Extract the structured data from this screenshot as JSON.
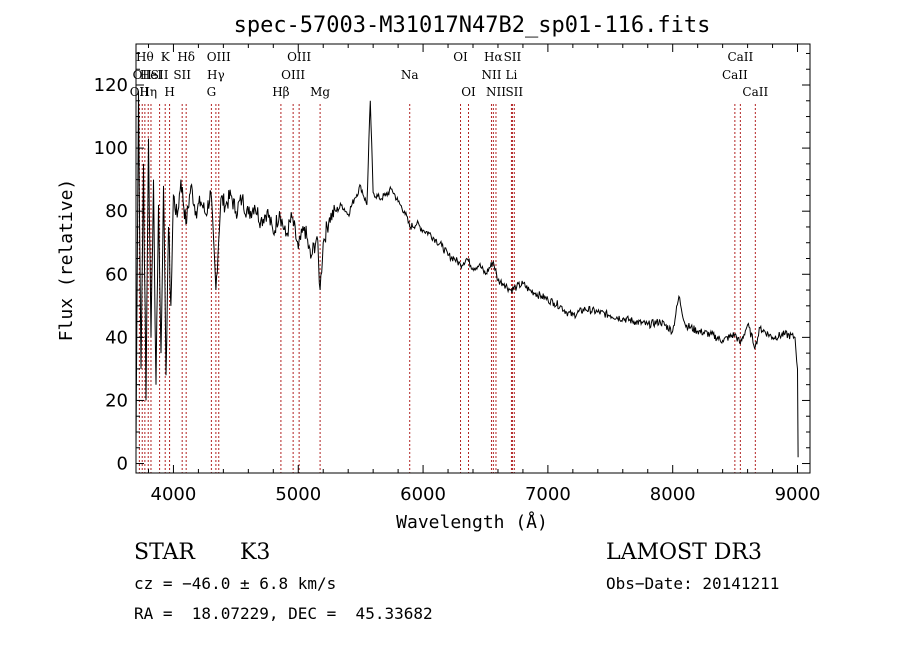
{
  "chart_data": {
    "type": "line",
    "title": "spec-57003-M31017N47B2_sp01-116.fits",
    "xlabel": "Wavelength (Å)",
    "ylabel": "Flux (relative)",
    "xlim": [
      3700,
      9100
    ],
    "ylim": [
      -3,
      133
    ],
    "xticks": [
      4000,
      5000,
      6000,
      7000,
      8000,
      9000
    ],
    "yticks": [
      0,
      20,
      40,
      60,
      80,
      100,
      120
    ],
    "series": [
      {
        "name": "flux",
        "x": [
          3700,
          3720,
          3740,
          3760,
          3780,
          3800,
          3820,
          3840,
          3860,
          3880,
          3900,
          3920,
          3940,
          3960,
          3980,
          4000,
          4030,
          4060,
          4100,
          4140,
          4180,
          4220,
          4260,
          4300,
          4340,
          4380,
          4420,
          4460,
          4500,
          4550,
          4600,
          4650,
          4700,
          4750,
          4800,
          4850,
          4900,
          4950,
          5000,
          5050,
          5100,
          5150,
          5175,
          5200,
          5250,
          5300,
          5350,
          5400,
          5450,
          5500,
          5550,
          5577,
          5600,
          5650,
          5700,
          5750,
          5800,
          5850,
          5893,
          5950,
          6000,
          6050,
          6100,
          6150,
          6200,
          6250,
          6300,
          6350,
          6400,
          6450,
          6500,
          6563,
          6600,
          6650,
          6700,
          6750,
          6800,
          6850,
          6900,
          6950,
          7000,
          7050,
          7100,
          7150,
          7200,
          7300,
          7400,
          7500,
          7600,
          7700,
          7800,
          7900,
          8000,
          8050,
          8100,
          8200,
          8300,
          8400,
          8498,
          8542,
          8600,
          8662,
          8700,
          8800,
          8900,
          8980,
          9000,
          9005
        ],
        "values": [
          5,
          118,
          30,
          95,
          20,
          103,
          40,
          90,
          25,
          82,
          35,
          88,
          28,
          75,
          50,
          85,
          78,
          90,
          76,
          88,
          80,
          83,
          79,
          86,
          55,
          84,
          82,
          85,
          80,
          84,
          79,
          82,
          77,
          80,
          73,
          80,
          72,
          78,
          68,
          75,
          65,
          72,
          55,
          70,
          78,
          80,
          82,
          79,
          84,
          88,
          82,
          115,
          86,
          84,
          85,
          87,
          83,
          80,
          75,
          76,
          74,
          73,
          71,
          69,
          66,
          65,
          63,
          65,
          62,
          63,
          60,
          64,
          58,
          57,
          55,
          56,
          57,
          55,
          54,
          53,
          52,
          51,
          50,
          48,
          47,
          49,
          48,
          47,
          46,
          45,
          44,
          45,
          42,
          53,
          44,
          42,
          41,
          39,
          41,
          38,
          44,
          37,
          43,
          40,
          41,
          40,
          30,
          2
        ]
      }
    ],
    "lines": [
      {
        "wl": 3727,
        "row": 2,
        "label": "OII"
      },
      {
        "wl": 3750,
        "row": 1,
        "label": "OII"
      },
      {
        "wl": 3771,
        "row": 0,
        "label": "Hθ"
      },
      {
        "wl": 3798,
        "row": 2,
        "label": "Hη"
      },
      {
        "wl": 3820,
        "row": 1,
        "label": "HeI"
      },
      {
        "wl": 3889,
        "row": 1,
        "label": "SII"
      },
      {
        "wl": 3934,
        "row": 0,
        "label": "K"
      },
      {
        "wl": 3969,
        "row": 2,
        "label": "H"
      },
      {
        "wl": 4070,
        "row": 1,
        "label": "SII"
      },
      {
        "wl": 4102,
        "row": 0,
        "label": "Hδ"
      },
      {
        "wl": 4304,
        "row": 2,
        "label": "G"
      },
      {
        "wl": 4340,
        "row": 1,
        "label": "Hγ"
      },
      {
        "wl": 4363,
        "row": 0,
        "label": "OIII"
      },
      {
        "wl": 4861,
        "row": 2,
        "label": "Hβ"
      },
      {
        "wl": 4959,
        "row": 1,
        "label": "OIII"
      },
      {
        "wl": 5007,
        "row": 0,
        "label": "OIII"
      },
      {
        "wl": 5175,
        "row": 2,
        "label": "Mg"
      },
      {
        "wl": 5893,
        "row": 1,
        "label": "Na"
      },
      {
        "wl": 6300,
        "row": 0,
        "label": "OI"
      },
      {
        "wl": 6364,
        "row": 2,
        "label": "OI"
      },
      {
        "wl": 6548,
        "row": 1,
        "label": "NII"
      },
      {
        "wl": 6563,
        "row": 0,
        "label": "Hα"
      },
      {
        "wl": 6584,
        "row": 2,
        "label": "NII"
      },
      {
        "wl": 6708,
        "row": 1,
        "label": "Li"
      },
      {
        "wl": 6716,
        "row": 0,
        "label": "SII"
      },
      {
        "wl": 6731,
        "row": 2,
        "label": "SII"
      },
      {
        "wl": 8498,
        "row": 1,
        "label": "CaII"
      },
      {
        "wl": 8542,
        "row": 0,
        "label": "CaII"
      },
      {
        "wl": 8662,
        "row": 2,
        "label": "CaII"
      }
    ]
  },
  "info": {
    "object_class": "STAR",
    "subclass": "K3",
    "survey": "LAMOST DR3",
    "redshift": "cz = −46.0 ± 6.8 km/s",
    "obs_date": "Obs−Date: 20141211",
    "coords": "RA =  18.07229, DEC =  45.33682"
  },
  "colors": {
    "spectrum": "#000000",
    "line_marker": "#b22222",
    "axes": "#000000"
  }
}
